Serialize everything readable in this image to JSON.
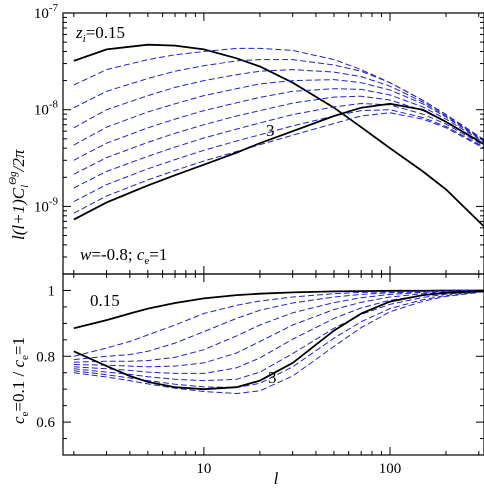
{
  "chart_data": [
    {
      "type": "line",
      "xscale": "log",
      "yscale": "log",
      "xlim": [
        1.75,
        320
      ],
      "ylim": [
        2e-10,
        1e-07
      ],
      "yticks": [
        {
          "value": 1e-07,
          "label": "10",
          "exp": "-7"
        },
        {
          "value": 1e-08,
          "label": "10",
          "exp": "-8"
        },
        {
          "value": 1e-09,
          "label": "10",
          "exp": "-9"
        }
      ],
      "ylabel": "l(l+1)C_l^{Θg}/2π",
      "annotations": {
        "top_left": "z_i=0.15",
        "bottom_left": "w=-0.8; c_e=1",
        "curve_label": "3"
      },
      "grid": false,
      "x": [
        2,
        3,
        5,
        7,
        10,
        15,
        20,
        30,
        50,
        70,
        100,
        150,
        200,
        320
      ],
      "series": [
        {
          "style": "solid",
          "values": [
            3.2e-08,
            4.2e-08,
            4.7e-08,
            4.6e-08,
            4.2e-08,
            3.4e-08,
            2.8e-08,
            1.9e-08,
            1.05e-08,
            6.6e-09,
            4e-09,
            2.3e-09,
            1.5e-09,
            6.2e-10
          ]
        },
        {
          "style": "dashed",
          "values": [
            1.8e-08,
            2.6e-08,
            3.3e-08,
            3.7e-08,
            4e-08,
            4.3e-08,
            4.3e-08,
            4.1e-08,
            3.3e-08,
            2.6e-08,
            1.9e-08,
            1.25e-08,
            8.9e-09,
            4.9e-09
          ]
        },
        {
          "style": "dashed",
          "values": [
            1.05e-08,
            1.55e-08,
            2.1e-08,
            2.5e-08,
            2.85e-08,
            3.2e-08,
            3.3e-08,
            3.3e-08,
            2.9e-08,
            2.5e-08,
            1.9e-08,
            1.25e-08,
            8.9e-09,
            4.9e-09
          ]
        },
        {
          "style": "dashed",
          "values": [
            6.5e-09,
            1e-08,
            1.4e-08,
            1.7e-08,
            2e-08,
            2.3e-08,
            2.5e-08,
            2.6e-08,
            2.45e-08,
            2.2e-08,
            1.75e-08,
            1.2e-08,
            8.6e-09,
            4.8e-09
          ]
        },
        {
          "style": "dashed",
          "values": [
            4.3e-09,
            6.6e-09,
            9.5e-09,
            1.15e-08,
            1.4e-08,
            1.65e-08,
            1.85e-08,
            2e-08,
            2.05e-08,
            1.9e-08,
            1.6e-08,
            1.15e-08,
            8.4e-09,
            4.7e-09
          ]
        },
        {
          "style": "dashed",
          "values": [
            3e-09,
            4.5e-09,
            6.5e-09,
            8e-09,
            9.8e-09,
            1.18e-08,
            1.34e-08,
            1.55e-08,
            1.65e-08,
            1.62e-08,
            1.42e-08,
            1.07e-08,
            8e-09,
            4.6e-09
          ]
        },
        {
          "style": "dashed",
          "values": [
            2.15e-09,
            3.2e-09,
            4.6e-09,
            5.7e-09,
            7e-09,
            8.6e-09,
            9.8e-09,
            1.17e-08,
            1.35e-08,
            1.38e-08,
            1.26e-08,
            9.8e-09,
            7.5e-09,
            4.4e-09
          ]
        },
        {
          "style": "dashed",
          "values": [
            1.55e-09,
            2.3e-09,
            3.3e-09,
            4.1e-09,
            5.1e-09,
            6.3e-09,
            7.3e-09,
            8.9e-09,
            1.07e-08,
            1.16e-08,
            1.12e-08,
            9e-09,
            7.1e-09,
            4.25e-09
          ]
        },
        {
          "style": "dashed",
          "values": [
            1.12e-09,
            1.68e-09,
            2.45e-09,
            3.05e-09,
            3.8e-09,
            4.75e-09,
            5.5e-09,
            6.8e-09,
            8.6e-09,
            9.8e-09,
            1e-08,
            8.3e-09,
            6.7e-09,
            4.1e-09
          ]
        },
        {
          "style": "dashed",
          "values": [
            8.5e-10,
            1.28e-09,
            1.88e-09,
            2.35e-09,
            2.95e-09,
            3.7e-09,
            4.35e-09,
            5.45e-09,
            7.2e-09,
            8.6e-09,
            9.3e-09,
            8e-09,
            6.5e-09,
            4e-09
          ]
        },
        {
          "style": "solid",
          "values": [
            7.3e-10,
            1.1e-09,
            1.65e-09,
            2.1e-09,
            2.7e-09,
            3.6e-09,
            4.5e-09,
            6e-09,
            8.6e-09,
            1.05e-08,
            1.15e-08,
            1e-08,
            7.5e-09,
            4.4e-09
          ]
        }
      ]
    },
    {
      "type": "line",
      "xscale": "log",
      "xlim": [
        1.75,
        320
      ],
      "ylim": [
        0.5,
        1.05
      ],
      "yticks": [
        {
          "value": 1,
          "label": "1"
        },
        {
          "value": 0.8,
          "label": "0.8"
        },
        {
          "value": 0.6,
          "label": "0.6"
        }
      ],
      "xticks": [
        {
          "value": 10,
          "label": "10"
        },
        {
          "value": 100,
          "label": "100"
        }
      ],
      "xlabel": "l",
      "ylabel": "c_e=0.1 / c_e=1",
      "annotations": {
        "top_left": "0.15",
        "curve_label": "3"
      },
      "grid": false,
      "x": [
        2,
        3,
        4,
        5,
        7,
        10,
        15,
        20,
        30,
        50,
        70,
        100,
        150,
        200,
        320
      ],
      "series": [
        {
          "style": "solid",
          "values": [
            0.885,
            0.91,
            0.93,
            0.945,
            0.962,
            0.976,
            0.986,
            0.99,
            0.994,
            0.997,
            0.998,
            0.999,
            0.999,
            1.0,
            1.0
          ]
        },
        {
          "style": "dashed",
          "values": [
            0.8,
            0.825,
            0.845,
            0.865,
            0.895,
            0.93,
            0.955,
            0.968,
            0.98,
            0.99,
            0.994,
            0.996,
            0.998,
            0.999,
            1.0
          ]
        },
        {
          "style": "dashed",
          "values": [
            0.79,
            0.8,
            0.805,
            0.815,
            0.84,
            0.875,
            0.915,
            0.94,
            0.962,
            0.98,
            0.988,
            0.993,
            0.996,
            0.998,
            1.0
          ]
        },
        {
          "style": "dashed",
          "values": [
            0.782,
            0.785,
            0.785,
            0.787,
            0.797,
            0.82,
            0.862,
            0.895,
            0.932,
            0.963,
            0.978,
            0.988,
            0.994,
            0.997,
            1.0
          ]
        },
        {
          "style": "dashed",
          "values": [
            0.775,
            0.773,
            0.77,
            0.768,
            0.77,
            0.78,
            0.81,
            0.845,
            0.895,
            0.942,
            0.964,
            0.98,
            0.99,
            0.995,
            1.0
          ]
        },
        {
          "style": "dashed",
          "values": [
            0.768,
            0.762,
            0.757,
            0.752,
            0.748,
            0.748,
            0.765,
            0.795,
            0.852,
            0.915,
            0.947,
            0.97,
            0.985,
            0.992,
            0.999
          ]
        },
        {
          "style": "dashed",
          "values": [
            0.762,
            0.752,
            0.745,
            0.738,
            0.73,
            0.726,
            0.73,
            0.752,
            0.808,
            0.885,
            0.927,
            0.958,
            0.979,
            0.989,
            0.998
          ]
        },
        {
          "style": "dashed",
          "values": [
            0.756,
            0.744,
            0.734,
            0.726,
            0.715,
            0.707,
            0.705,
            0.718,
            0.768,
            0.855,
            0.905,
            0.945,
            0.972,
            0.985,
            0.997
          ]
        },
        {
          "style": "dashed",
          "values": [
            0.75,
            0.737,
            0.726,
            0.716,
            0.703,
            0.693,
            0.687,
            0.695,
            0.74,
            0.83,
            0.887,
            0.935,
            0.967,
            0.982,
            0.996
          ]
        },
        {
          "style": "solid",
          "values": [
            0.815,
            0.77,
            0.74,
            0.722,
            0.706,
            0.7,
            0.706,
            0.726,
            0.78,
            0.878,
            0.93,
            0.966,
            0.986,
            0.993,
            0.998
          ]
        }
      ]
    }
  ]
}
